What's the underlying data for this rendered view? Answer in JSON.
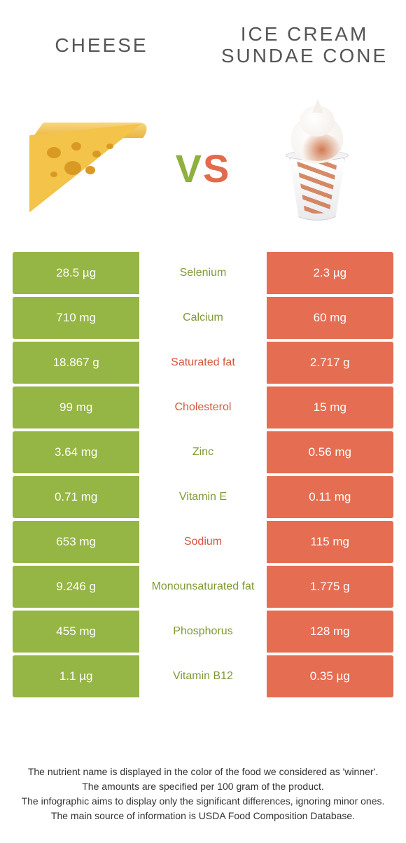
{
  "colors": {
    "left": "#95b544",
    "right": "#e56d52",
    "nutrient_left": "#7d9a35",
    "nutrient_right": "#d2583e"
  },
  "header": {
    "left": "CHEESE",
    "right": "ICE CREAM SUNDAE CONE",
    "vs_v": "V",
    "vs_s": "S"
  },
  "rows": [
    {
      "left": "28.5 µg",
      "nutrient": "Selenium",
      "right": "2.3 µg",
      "winner": "left"
    },
    {
      "left": "710 mg",
      "nutrient": "Calcium",
      "right": "60 mg",
      "winner": "left"
    },
    {
      "left": "18.867 g",
      "nutrient": "Saturated fat",
      "right": "2.717 g",
      "winner": "right"
    },
    {
      "left": "99 mg",
      "nutrient": "Cholesterol",
      "right": "15 mg",
      "winner": "right"
    },
    {
      "left": "3.64 mg",
      "nutrient": "Zinc",
      "right": "0.56 mg",
      "winner": "left"
    },
    {
      "left": "0.71 mg",
      "nutrient": "Vitamin E",
      "right": "0.11 mg",
      "winner": "left"
    },
    {
      "left": "653 mg",
      "nutrient": "Sodium",
      "right": "115 mg",
      "winner": "right"
    },
    {
      "left": "9.246 g",
      "nutrient": "Monounsaturated fat",
      "right": "1.775 g",
      "winner": "left"
    },
    {
      "left": "455 mg",
      "nutrient": "Phosphorus",
      "right": "128 mg",
      "winner": "left"
    },
    {
      "left": "1.1 µg",
      "nutrient": "Vitamin B12",
      "right": "0.35 µg",
      "winner": "left"
    }
  ],
  "footer": {
    "l1": "The nutrient name is displayed in the color of the food we considered as 'winner'.",
    "l2": "The amounts are specified per 100 gram of the product.",
    "l3": "The infographic aims to display only the significant differences, ignoring minor ones.",
    "l4": "The main source of information is USDA Food Composition Database."
  }
}
